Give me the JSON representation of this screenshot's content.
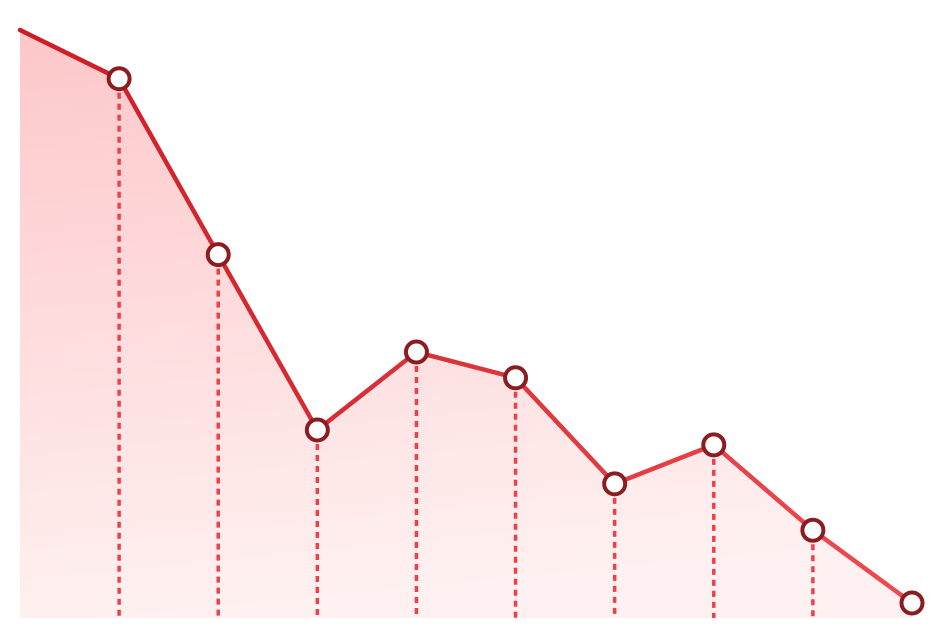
{
  "chart_data": {
    "type": "area",
    "title": "",
    "xlabel": "",
    "ylabel": "",
    "x": [
      0,
      1,
      2,
      3,
      4,
      5,
      6,
      7,
      8,
      9
    ],
    "series": [
      {
        "values": [
          100,
          91.5,
          60.8,
          30.2,
          43.8,
          39.3,
          20.8,
          27.6,
          12.7,
          0
        ]
      }
    ],
    "xlim": [
      0,
      9
    ],
    "ylim": [
      0,
      100
    ],
    "grid": false,
    "legend": "none",
    "markers": "hollow-circle",
    "drop_lines": "dashed",
    "colors": {
      "line_start": "#cc1c24",
      "line_end": "#ee4b52",
      "marker_stroke": "#8b1c20",
      "marker_fill": "#ffffff",
      "drop_line": "#ee4048",
      "fill_top": "#fdc7c9",
      "fill_bottom": "#fff1f1"
    }
  }
}
